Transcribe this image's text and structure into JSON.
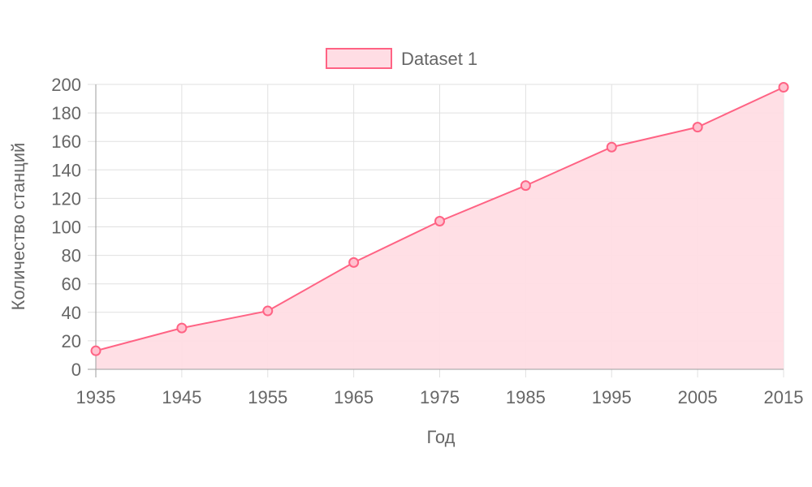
{
  "chart_data": {
    "type": "area",
    "x": [
      1935,
      1945,
      1955,
      1965,
      1975,
      1985,
      1995,
      2005,
      2015
    ],
    "series": [
      {
        "name": "Dataset 1",
        "values": [
          13,
          29,
          41,
          75,
          104,
          129,
          156,
          170,
          198
        ]
      }
    ],
    "x_ticks": [
      "1935",
      "1945",
      "1955",
      "1965",
      "1975",
      "1985",
      "1995",
      "2005",
      "2015"
    ],
    "y_ticks": [
      "0",
      "20",
      "40",
      "60",
      "80",
      "100",
      "120",
      "140",
      "160",
      "180",
      "200"
    ],
    "xlabel": "Год",
    "ylabel": "Количество станций",
    "xlim": [
      1935,
      2015
    ],
    "ylim": [
      0,
      200
    ],
    "grid": true,
    "legend_position": "top",
    "colors": {
      "line": "#ff6384",
      "fill": "#ffdde4",
      "point_fill": "#ffc1cf"
    }
  }
}
